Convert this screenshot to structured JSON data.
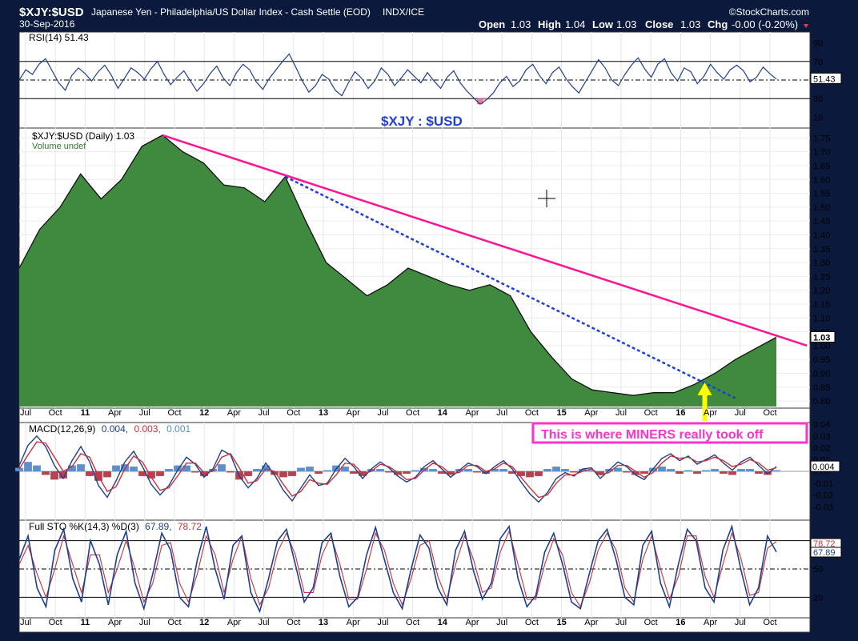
{
  "header": {
    "symbol": "$XJY:$USD",
    "name": "Japanese Yen - Philadelphia/US Dollar Index - Cash Settle (EOD)",
    "exchange": "INDX/ICE",
    "date": "30-Sep-2016",
    "watermark": "©StockCharts.com",
    "open_label": "Open",
    "open": "1.03",
    "high_label": "High",
    "high": "1.04",
    "low_label": "Low",
    "low": "1.03",
    "close_label": "Close",
    "close": "1.03",
    "chg_label": "Chg",
    "chg": "-0.00 (-0.20%)"
  },
  "colors": {
    "frame": "#0b1a3c",
    "panel_bg": "#ffffff",
    "price_fill": "#3f8a3f",
    "indicator_line": "#1f3f8f",
    "signal_line": "#c8323c",
    "trend_solid": "#ff1493",
    "trend_dashed": "#1f3fd6",
    "arrow": "#ffff00",
    "annotation": "#ff33cc"
  },
  "chart_data": [
    {
      "type": "line",
      "title": "RSI(14) 51.43",
      "current_value": "51.43",
      "ylim": [
        0,
        100
      ],
      "yticks": [
        "90",
        "70",
        "50",
        "30",
        "10"
      ],
      "reference_lines": [
        70,
        30
      ],
      "oversold_shading_color": "#f07aa0",
      "values": [
        50,
        61,
        56,
        67,
        73,
        60,
        47,
        39,
        55,
        63,
        57,
        49,
        59,
        66,
        55,
        41,
        52,
        63,
        58,
        51,
        62,
        70,
        56,
        45,
        53,
        60,
        49,
        38,
        46,
        57,
        65,
        52,
        44,
        58,
        67,
        61,
        48,
        40,
        52,
        61,
        70,
        78,
        64,
        49,
        37,
        44,
        56,
        51,
        39,
        33,
        47,
        59,
        52,
        41,
        49,
        63,
        56,
        44,
        52,
        61,
        54,
        47,
        58,
        49,
        41,
        53,
        60,
        47,
        38,
        31,
        24,
        29,
        36,
        47,
        54,
        43,
        49,
        61,
        67,
        55,
        46,
        58,
        64,
        52,
        43,
        36,
        48,
        60,
        72,
        63,
        50,
        44,
        56,
        66,
        74,
        62,
        53,
        67,
        73,
        58,
        49,
        63,
        59,
        46,
        54,
        67,
        58,
        51,
        61,
        66,
        60,
        48,
        53,
        64,
        57,
        51
      ]
    },
    {
      "type": "area",
      "title": "$XJY:$USD (Daily) 1.03",
      "volume_label": "Volume undef",
      "current_value": "1.03",
      "ylim": [
        0.78,
        1.78
      ],
      "yticks": [
        "1.75",
        "1.70",
        "1.65",
        "1.60",
        "1.55",
        "1.50",
        "1.45",
        "1.40",
        "1.35",
        "1.30",
        "1.25",
        "1.20",
        "1.15",
        "1.10",
        "1.05",
        "1.00",
        "0.95",
        "0.90",
        "0.85",
        "0.80"
      ],
      "x": [
        "2010-07",
        "2010-09",
        "2010-11",
        "2011-01",
        "2011-03",
        "2011-05",
        "2011-07",
        "2011-09",
        "2011-11",
        "2012-01",
        "2012-03",
        "2012-05",
        "2012-07",
        "2012-09",
        "2012-11",
        "2013-01",
        "2013-03",
        "2013-05",
        "2013-07",
        "2013-09",
        "2013-11",
        "2014-01",
        "2014-03",
        "2014-05",
        "2014-07",
        "2014-09",
        "2014-11",
        "2015-01",
        "2015-03",
        "2015-05",
        "2015-07",
        "2015-09",
        "2015-11",
        "2016-01",
        "2016-03",
        "2016-05",
        "2016-07",
        "2016-09"
      ],
      "values": [
        1.28,
        1.42,
        1.5,
        1.62,
        1.53,
        1.6,
        1.72,
        1.76,
        1.7,
        1.66,
        1.58,
        1.57,
        1.52,
        1.61,
        1.45,
        1.3,
        1.24,
        1.18,
        1.22,
        1.28,
        1.25,
        1.22,
        1.2,
        1.22,
        1.18,
        1.05,
        0.96,
        0.88,
        0.84,
        0.83,
        0.82,
        0.83,
        0.83,
        0.86,
        0.9,
        0.95,
        0.99,
        1.03
      ],
      "trendlines": [
        {
          "name": "solid",
          "from": [
            "2011-09",
            1.76
          ],
          "to": [
            "2016-12",
            1.0
          ]
        },
        {
          "name": "dashed",
          "from": [
            "2012-09",
            1.61
          ],
          "to": [
            "2016-05",
            0.81
          ]
        }
      ],
      "overlay_text": "$XJY : $USD",
      "annotation": "This is where MINERS really took off",
      "annotation_at": "2016-02"
    },
    {
      "type": "line",
      "title": "MACD(12,26,9) 0.004, 0.003, 0.001",
      "title_parts": [
        "MACD(12,26,9)",
        "0.004,",
        "0.003,",
        "0.001"
      ],
      "current_value": "0.004",
      "ylim": [
        -0.04,
        0.04
      ],
      "yticks": [
        "0.04",
        "0.03",
        "0.02",
        "0.01",
        "0.00",
        "-0.01",
        "-0.02",
        "-0.03"
      ],
      "series": [
        {
          "values": [
            0.005,
            0.022,
            0.03,
            0.021,
            0.005,
            -0.006,
            0.009,
            0.021,
            0.008,
            -0.012,
            -0.022,
            -0.008,
            0.008,
            0.017,
            0.004,
            -0.011,
            -0.02,
            -0.012,
            0.001,
            0.012,
            0.006,
            -0.005,
            0.002,
            0.018,
            0.014,
            -0.004,
            -0.014,
            -0.006,
            0.007,
            -0.003,
            -0.016,
            -0.025,
            -0.014,
            -0.003,
            -0.012,
            -0.01,
            0.002,
            0.011,
            0.004,
            -0.006,
            0.002,
            0.008,
            0.003,
            -0.004,
            -0.009,
            -0.005,
            0.004,
            0.009,
            0.002,
            -0.005,
            0.001,
            0.007,
            0.004,
            -0.002,
            0.004,
            0.009,
            0.002,
            -0.009,
            -0.019,
            -0.026,
            -0.018,
            -0.006,
            -0.001,
            -0.004,
            0.002,
            0.003,
            -0.006,
            0.001,
            0.008,
            0.004,
            -0.003,
            -0.007,
            0.002,
            0.011,
            0.015,
            0.009,
            0.013,
            0.006,
            0.01,
            0.014,
            0.007,
            0.001,
            0.008,
            0.012,
            0.005,
            -0.002,
            0.004
          ]
        },
        {
          "values": [
            0.002,
            0.014,
            0.025,
            0.024,
            0.012,
            0.0,
            0.004,
            0.015,
            0.012,
            -0.004,
            -0.017,
            -0.013,
            0.002,
            0.013,
            0.008,
            -0.005,
            -0.016,
            -0.014,
            -0.004,
            0.007,
            0.007,
            -0.001,
            0.0,
            0.012,
            0.015,
            0.003,
            -0.01,
            -0.008,
            0.002,
            0.0,
            -0.011,
            -0.021,
            -0.017,
            -0.007,
            -0.01,
            -0.011,
            -0.003,
            0.007,
            0.006,
            -0.002,
            0.0,
            0.006,
            0.004,
            -0.001,
            -0.007,
            -0.006,
            0.001,
            0.007,
            0.004,
            -0.002,
            -0.001,
            0.005,
            0.005,
            0.0,
            0.002,
            0.007,
            0.004,
            -0.005,
            -0.014,
            -0.022,
            -0.02,
            -0.01,
            -0.003,
            -0.003,
            0.0,
            0.002,
            -0.003,
            -0.001,
            0.005,
            0.005,
            0.0,
            -0.005,
            -0.001,
            0.007,
            0.013,
            0.011,
            0.012,
            0.008,
            0.009,
            0.012,
            0.009,
            0.004,
            0.006,
            0.01,
            0.007,
            0.001,
            0.003
          ]
        }
      ],
      "histogram": [
        0.003,
        0.008,
        0.005,
        -0.003,
        -0.007,
        -0.006,
        0.005,
        0.006,
        -0.004,
        -0.008,
        -0.005,
        0.005,
        0.006,
        0.004,
        -0.004,
        -0.006,
        -0.004,
        0.002,
        0.005,
        0.005,
        -0.001,
        -0.004,
        0.002,
        0.006,
        -0.001,
        -0.007,
        -0.004,
        0.002,
        0.005,
        -0.003,
        -0.005,
        -0.004,
        0.003,
        0.004,
        -0.002,
        0.001,
        0.005,
        0.004,
        -0.002,
        -0.004,
        0.002,
        0.002,
        -0.001,
        -0.003,
        -0.002,
        0.001,
        0.003,
        0.002,
        -0.002,
        -0.003,
        0.002,
        0.002,
        -0.001,
        -0.002,
        0.002,
        0.002,
        -0.002,
        -0.004,
        -0.005,
        -0.004,
        0.002,
        0.004,
        0.002,
        -0.001,
        0.002,
        0.001,
        -0.003,
        0.002,
        0.003,
        -0.001,
        -0.003,
        -0.002,
        0.003,
        0.004,
        0.002,
        -0.002,
        0.001,
        -0.002,
        0.001,
        0.002,
        -0.002,
        -0.003,
        0.002,
        0.002,
        -0.002,
        -0.003,
        0.001
      ]
    },
    {
      "type": "line",
      "title": "Full STO %K(14,3) %D(3) 67.89, 78.72",
      "title_parts": [
        "Full STO %K(14,3) %D(3)",
        "67.89,",
        "78.72"
      ],
      "current_values": [
        "78.72",
        "67.89"
      ],
      "ylim": [
        0,
        100
      ],
      "yticks": [
        "50",
        "20"
      ],
      "reference_lines": [
        80,
        50,
        20
      ],
      "series": [
        {
          "values": [
            60,
            85,
            30,
            10,
            70,
            92,
            40,
            15,
            80,
            55,
            12,
            65,
            90,
            35,
            8,
            45,
            88,
            70,
            20,
            10,
            60,
            95,
            50,
            18,
            75,
            85,
            25,
            5,
            40,
            80,
            92,
            55,
            15,
            30,
            78,
            88,
            42,
            10,
            20,
            65,
            94,
            60,
            25,
            8,
            50,
            86,
            72,
            30,
            12,
            70,
            90,
            48,
            18,
            35,
            82,
            95,
            40,
            10,
            22,
            68,
            88,
            55,
            15,
            8,
            45,
            80,
            92,
            60,
            20,
            12,
            75,
            90,
            35,
            10,
            55,
            92,
            80,
            30,
            15,
            70,
            95,
            50,
            12,
            30,
            85,
            68
          ]
        },
        {
          "values": [
            55,
            75,
            45,
            20,
            50,
            85,
            55,
            25,
            65,
            65,
            25,
            50,
            80,
            50,
            15,
            35,
            75,
            78,
            35,
            15,
            45,
            85,
            65,
            25,
            60,
            85,
            40,
            12,
            30,
            68,
            88,
            65,
            25,
            25,
            65,
            85,
            55,
            18,
            18,
            50,
            88,
            70,
            35,
            12,
            40,
            75,
            80,
            42,
            18,
            55,
            85,
            60,
            25,
            30,
            68,
            90,
            55,
            18,
            18,
            55,
            82,
            65,
            25,
            10,
            35,
            70,
            88,
            70,
            30,
            15,
            60,
            85,
            50,
            18,
            42,
            85,
            85,
            42,
            20,
            55,
            88,
            62,
            22,
            25,
            72,
            79
          ]
        }
      ]
    }
  ],
  "x_axis": {
    "labels": [
      "Jul",
      "Oct",
      "11",
      "Apr",
      "Jul",
      "Oct",
      "12",
      "Apr",
      "Jul",
      "Oct",
      "13",
      "Apr",
      "Jul",
      "Oct",
      "14",
      "Apr",
      "Jul",
      "Oct",
      "15",
      "Apr",
      "Jul",
      "Oct",
      "16",
      "Apr",
      "Jul",
      "Oct"
    ],
    "bold": [
      false,
      false,
      true,
      false,
      false,
      false,
      true,
      false,
      false,
      false,
      true,
      false,
      false,
      false,
      true,
      false,
      false,
      false,
      true,
      false,
      false,
      false,
      true,
      false,
      false,
      false
    ]
  }
}
